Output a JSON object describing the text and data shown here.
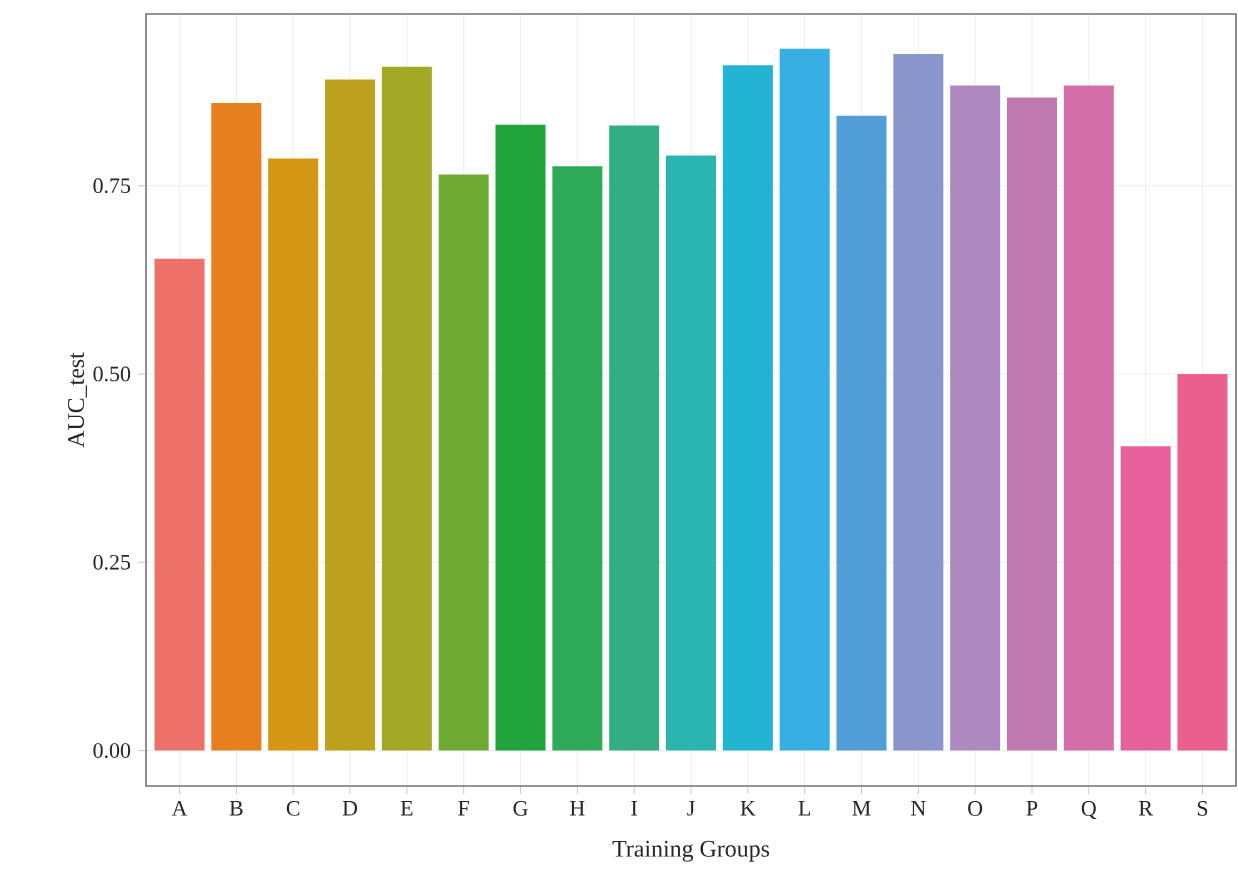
{
  "chart_data": {
    "type": "bar",
    "xlabel": "Training Groups",
    "ylabel": "AUC_test",
    "categories": [
      "A",
      "B",
      "C",
      "D",
      "E",
      "F",
      "G",
      "H",
      "I",
      "J",
      "K",
      "L",
      "M",
      "N",
      "O",
      "P",
      "Q",
      "R",
      "S"
    ],
    "values": [
      0.653,
      0.86,
      0.786,
      0.891,
      0.908,
      0.765,
      0.831,
      0.776,
      0.83,
      0.79,
      0.91,
      0.932,
      0.843,
      0.925,
      0.883,
      0.867,
      0.883,
      0.404,
      0.5
    ],
    "colors": [
      "#ee7169",
      "#e6801f",
      "#d59615",
      "#bea11e",
      "#a3a826",
      "#6fab34",
      "#22a43c",
      "#2eaa58",
      "#33ae84",
      "#2bb5b0",
      "#22b4d2",
      "#37afe4",
      "#529fd7",
      "#8a96cb",
      "#ad89c0",
      "#c078b1",
      "#d46ea8",
      "#e8609b",
      "#eb5f8f"
    ],
    "ylim": [
      -0.047,
      0.978
    ],
    "yticks": [
      {
        "value": 0,
        "label": "0.00"
      },
      {
        "value": 0.25,
        "label": "0.25"
      },
      {
        "value": 0.5,
        "label": "0.50"
      },
      {
        "value": 0.75,
        "label": "0.75"
      }
    ],
    "grid": true
  }
}
